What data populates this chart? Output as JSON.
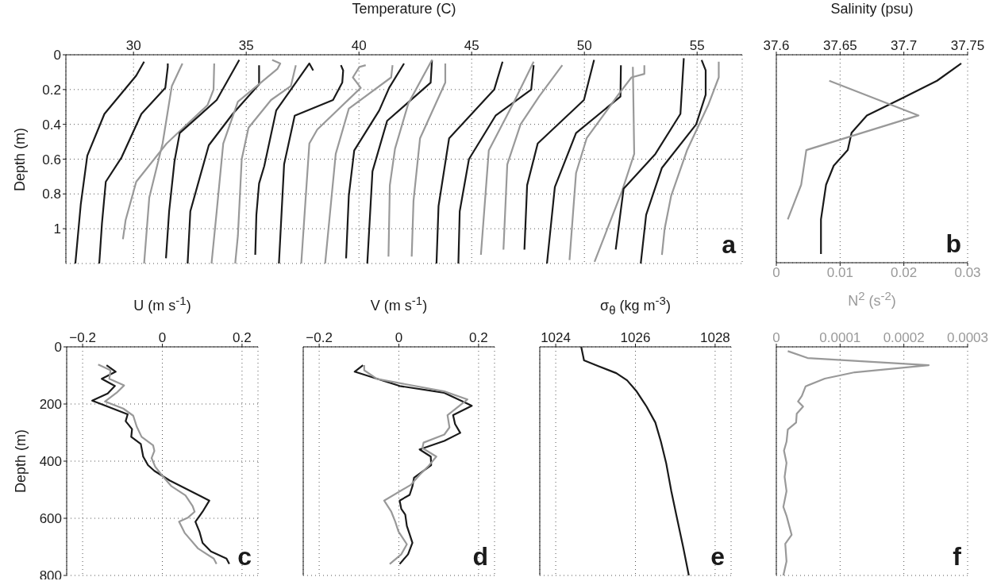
{
  "chart_data": [
    {
      "type": "line",
      "xlabel": "Temperature (C)",
      "ylabel": "Depth (m)",
      "xlim": [
        27,
        57
      ],
      "xticks": [
        30,
        35,
        40,
        45,
        50,
        55
      ],
      "ylim": [
        1.2,
        0
      ],
      "yticks": [
        0,
        0.2,
        0.4,
        0.6,
        0.8,
        1
      ],
      "grid": true,
      "annotations": [
        "a"
      ],
      "series": [
        {
          "color": "#1a1a1a",
          "x": [
            30.47,
            30.12,
            28.71,
            27.95,
            27.66,
            27.42
          ],
          "values": [
            0.04,
            0.12,
            0.34,
            0.58,
            0.86,
            1.2
          ]
        },
        {
          "color": "#1a1a1a",
          "x": [
            31.52,
            31.52,
            31.41,
            30.35,
            29.47,
            28.77,
            28.6,
            28.48
          ],
          "values": [
            0.05,
            0.07,
            0.19,
            0.34,
            0.59,
            0.73,
            0.97,
            1.2
          ]
        },
        {
          "color": "#999999",
          "x": [
            32.17,
            31.7,
            31.29,
            30.7,
            30.47
          ],
          "values": [
            0.05,
            0.18,
            0.51,
            0.82,
            1.2
          ]
        },
        {
          "color": "#999999",
          "x": [
            33.58,
            33.55,
            33.28,
            31.47,
            30.12,
            29.65,
            29.53
          ],
          "values": [
            0.05,
            0.2,
            0.29,
            0.51,
            0.73,
            0.95,
            1.06
          ]
        },
        {
          "color": "#1a1a1a",
          "x": [
            34.69,
            33.69,
            32.05,
            31.82,
            31.58,
            31.44
          ],
          "values": [
            0.03,
            0.26,
            0.45,
            0.61,
            0.9,
            1.17
          ]
        },
        {
          "color": "#1a1a1a",
          "x": [
            35.57,
            35.57,
            34.4,
            33.34,
            32.52,
            32.4
          ],
          "values": [
            0.06,
            0.17,
            0.34,
            0.52,
            0.9,
            1.2
          ]
        },
        {
          "color": "#999999",
          "x": [
            36.15,
            36.51,
            36.39,
            34.63,
            33.98,
            33.69,
            33.46
          ],
          "values": [
            0.03,
            0.05,
            0.08,
            0.27,
            0.51,
            0.9,
            1.2
          ]
        },
        {
          "color": "#999999",
          "x": [
            37.2,
            36.98,
            36.1,
            35.1,
            34.8,
            34.63,
            34.51
          ],
          "values": [
            0.06,
            0.18,
            0.26,
            0.42,
            0.6,
            1.04,
            1.2
          ]
        },
        {
          "color": "#1a1a1a",
          "x": [
            37.97,
            37.8,
            36.33,
            35.8,
            35.57,
            35.45,
            35.4
          ],
          "values": [
            0.09,
            0.05,
            0.32,
            0.64,
            0.74,
            0.92,
            1.15
          ]
        },
        {
          "color": "#1a1a1a",
          "x": [
            39.2,
            39.3,
            39.26,
            38.85,
            37.15,
            36.68,
            36.45
          ],
          "values": [
            0.06,
            0.09,
            0.16,
            0.26,
            0.35,
            0.63,
            1.2
          ]
        },
        {
          "color": "#999999",
          "x": [
            40.3,
            40.02,
            39.73,
            40.08,
            38.15,
            37.8,
            37.44
          ],
          "values": [
            0.06,
            0.07,
            0.13,
            0.19,
            0.43,
            0.51,
            1.2
          ]
        },
        {
          "color": "#999999",
          "x": [
            41.49,
            41.43,
            39.55,
            38.97,
            38.5
          ],
          "values": [
            0.06,
            0.13,
            0.31,
            0.57,
            1.2
          ]
        },
        {
          "color": "#1a1a1a",
          "x": [
            42.0,
            41.34,
            40.9,
            39.79,
            39.55,
            39.43
          ],
          "values": [
            0.05,
            0.19,
            0.32,
            0.55,
            0.81,
            1.17
          ]
        },
        {
          "color": "#1a1a1a",
          "x": [
            43.24,
            43.18,
            41.25,
            40.6,
            40.37
          ],
          "values": [
            0.03,
            0.16,
            0.38,
            0.67,
            1.2
          ]
        },
        {
          "color": "#999999",
          "x": [
            43.24,
            42.19,
            41.6,
            41.37,
            41.31
          ],
          "values": [
            0.03,
            0.28,
            0.54,
            0.75,
            1.16
          ]
        },
        {
          "color": "#999999",
          "x": [
            43.83,
            43.83,
            42.71,
            42.42,
            42.34
          ],
          "values": [
            0.05,
            0.16,
            0.48,
            0.84,
            1.16
          ]
        },
        {
          "color": "#1a1a1a",
          "x": [
            46.37,
            46.0,
            44.0,
            43.53,
            43.44
          ],
          "values": [
            0.04,
            0.2,
            0.48,
            0.87,
            1.2
          ]
        },
        {
          "color": "#1a1a1a",
          "x": [
            47.75,
            47.64,
            46.06,
            44.88,
            44.47,
            44.41
          ],
          "values": [
            0.06,
            0.2,
            0.35,
            0.6,
            0.9,
            1.2
          ]
        },
        {
          "color": "#999999",
          "x": [
            47.75,
            46.88,
            45.76,
            45.41
          ],
          "values": [
            0.04,
            0.27,
            0.55,
            1.15
          ]
        },
        {
          "color": "#999999",
          "x": [
            49.02,
            47.99,
            47.17,
            46.58,
            46.41
          ],
          "values": [
            0.06,
            0.24,
            0.4,
            0.63,
            1.12
          ]
        },
        {
          "color": "#1a1a1a",
          "x": [
            50.43,
            49.98,
            47.93,
            47.46,
            47.34
          ],
          "values": [
            0.03,
            0.26,
            0.51,
            0.75,
            1.12
          ]
        },
        {
          "color": "#1a1a1a",
          "x": [
            51.62,
            51.6,
            49.63,
            48.69,
            48.34
          ],
          "values": [
            0.06,
            0.24,
            0.45,
            0.76,
            1.2
          ]
        },
        {
          "color": "#999999",
          "x": [
            52.66,
            52.66,
            52.09,
            51.5,
            50.1,
            49.63,
            49.34
          ],
          "values": [
            0.06,
            0.11,
            0.13,
            0.23,
            0.48,
            0.68,
            1.18
          ]
        },
        {
          "color": "#999999",
          "x": [
            52.15,
            52.21,
            51.68,
            50.45
          ],
          "values": [
            0.07,
            0.57,
            0.78,
            1.19
          ]
        },
        {
          "color": "#1a1a1a",
          "x": [
            54.41,
            54.26,
            53.15,
            51.74,
            51.39
          ],
          "values": [
            0.02,
            0.34,
            0.57,
            0.77,
            1.12
          ]
        },
        {
          "color": "#1a1a1a",
          "x": [
            55.2,
            55.38,
            55.38,
            54.96,
            53.44,
            52.74,
            52.5
          ],
          "values": [
            0.03,
            0.09,
            0.23,
            0.4,
            0.65,
            0.92,
            1.2
          ]
        },
        {
          "color": "#999999",
          "x": [
            55.96,
            55.96,
            55.49,
            54.55,
            53.85,
            53.56,
            53.44
          ],
          "values": [
            0.04,
            0.13,
            0.29,
            0.55,
            0.81,
            1.0,
            1.15
          ]
        }
      ]
    },
    {
      "type": "line",
      "xlabel": "N$^{2}$ (s$^{-2}$)",
      "x2label": "Salinity (psu)",
      "xlim": [
        0,
        0.03
      ],
      "xticks": [
        0,
        0.01,
        0.02,
        0.03
      ],
      "x2lim": [
        37.6,
        37.75
      ],
      "x2ticks": [
        37.6,
        37.65,
        37.7,
        37.75
      ],
      "ylim": [
        1.2,
        0
      ],
      "yticks": [
        0,
        0.2,
        0.4,
        0.6,
        0.8,
        1
      ],
      "tick_labels": "x",
      "grid": true,
      "annotations": [
        "b"
      ],
      "series": [
        {
          "color": "#1a1a1a",
          "axis": "x2",
          "x": [
            37.745,
            37.726,
            37.699,
            37.671,
            37.659,
            37.656,
            37.645,
            37.639,
            37.635,
            37.635
          ],
          "values": [
            0.05,
            0.15,
            0.25,
            0.35,
            0.45,
            0.55,
            0.64,
            0.75,
            0.95,
            1.15
          ]
        },
        {
          "color": "#999999",
          "x": [
            0.0083,
            0.0223,
            0.0047,
            0.0039,
            0.0018
          ],
          "values": [
            0.15,
            0.35,
            0.55,
            0.75,
            0.95
          ]
        }
      ]
    },
    {
      "type": "line",
      "xlabel": "U (m s$^{-1}$)",
      "ylabel": "Depth (m)",
      "xlim": [
        -0.24,
        0.24
      ],
      "xticks": [
        {
          "value": -0.2,
          "label": "−0.2"
        },
        0,
        0.2
      ],
      "ylim": [
        800,
        0
      ],
      "yticks": [
        0,
        200,
        400,
        600,
        800
      ],
      "grid": true,
      "annotations": [
        "c"
      ],
      "series": [
        {
          "color": "#1a1a1a",
          "x": [
            -0.14,
            -0.117,
            -0.152,
            -0.119,
            -0.137,
            -0.176,
            -0.087,
            -0.092,
            -0.076,
            -0.078,
            -0.054,
            -0.048,
            -0.036,
            -0.02,
            0.019,
            0.118,
            0.101,
            0.083,
            0.093,
            0.101,
            0.122,
            0.161,
            0.168
          ],
          "values": [
            64,
            87,
            112,
            137,
            163,
            188,
            236,
            260,
            288,
            315,
            340,
            384,
            414,
            434,
            468,
            538,
            577,
            612,
            646,
            686,
            716,
            741,
            760
          ]
        },
        {
          "color": "#999999",
          "x": [
            -0.161,
            -0.13,
            -0.133,
            -0.096,
            -0.115,
            -0.144,
            -0.098,
            -0.073,
            -0.064,
            -0.052,
            -0.023,
            -0.02,
            -0.027,
            -0.018,
            -0.002,
            0.023,
            0.058,
            0.076,
            0.081,
            0.065,
            0.042,
            0.056,
            0.09,
            0.129,
            0.136
          ],
          "values": [
            62,
            82,
            112,
            135,
            161,
            191,
            216,
            241,
            280,
            315,
            345,
            364,
            389,
            419,
            448,
            488,
            520,
            557,
            577,
            597,
            612,
            651,
            706,
            741,
            760
          ]
        }
      ]
    },
    {
      "type": "line",
      "xlabel": "V (m s$^{-1}$)",
      "xlim": [
        -0.24,
        0.24
      ],
      "xticks": [
        {
          "value": -0.2,
          "label": "−0.2"
        },
        0,
        0.2
      ],
      "ylim": [
        800,
        0
      ],
      "yticks": [
        0,
        200,
        400,
        600,
        800
      ],
      "tick_labels": "x",
      "grid": true,
      "annotations": [
        "d"
      ],
      "series": [
        {
          "color": "#1a1a1a",
          "x": [
            -0.09,
            -0.111,
            0.002,
            0.114,
            0.183,
            0.136,
            0.141,
            0.154,
            0.114,
            0.052,
            0.08,
            0.081,
            0.038,
            0.034,
            0.027,
            0.002,
            0.006,
            0.016,
            0.02,
            0.027,
            0.034,
            0.023,
            0.002
          ],
          "values": [
            64,
            87,
            137,
            161,
            206,
            239,
            270,
            301,
            329,
            359,
            384,
            414,
            458,
            488,
            518,
            538,
            567,
            587,
            627,
            656,
            686,
            726,
            760
          ]
        },
        {
          "color": "#999999",
          "x": [
            -0.087,
            -0.087,
            -0.055,
            0.114,
            0.172,
            0.122,
            0.127,
            0.114,
            0.062,
            0.059,
            0.094,
            0.073,
            0.052,
            0.03,
            -0.037,
            -0.019,
            -0.009,
            -0.001,
            0.013,
            0.02,
            0.006,
            -0.023
          ],
          "values": [
            64,
            82,
            112,
            156,
            184,
            239,
            282,
            307,
            335,
            354,
            384,
            419,
            448,
            483,
            538,
            577,
            612,
            646,
            676,
            691,
            726,
            760
          ]
        }
      ]
    },
    {
      "type": "line",
      "xlabel": "σ$_{θ}$ (kg m$^{-3}$)",
      "xlim": [
        1023.6,
        1028.4
      ],
      "xticks": [
        1024,
        1026,
        1028
      ],
      "ylim": [
        800,
        0
      ],
      "yticks": [
        0,
        200,
        400,
        600,
        800
      ],
      "tick_labels": "x",
      "grid": true,
      "annotations": [
        "e"
      ],
      "series": [
        {
          "color": "#1a1a1a",
          "x": [
            1024.64,
            1024.71,
            1025.08,
            1025.52,
            1025.79,
            1026.02,
            1026.28,
            1026.5,
            1026.64,
            1026.77,
            1026.9,
            1027.03,
            1027.2,
            1027.34
          ],
          "values": [
            0,
            47,
            68,
            92,
            117,
            154,
            209,
            265,
            332,
            406,
            505,
            591,
            702,
            800
          ]
        }
      ]
    },
    {
      "type": "line",
      "xlim": [
        0,
        0.0003
      ],
      "xticks": [
        0,
        0.0001,
        0.0002,
        0.0003
      ],
      "ylim": [
        800,
        0
      ],
      "yticks": [
        0,
        200,
        400,
        600,
        800
      ],
      "tick_labels": "x",
      "grid": true,
      "annotations": [
        "f"
      ],
      "series": [
        {
          "color": "#999999",
          "x": [
            1.8e-05,
            4.9e-05,
            0.000239,
            0.000123,
            7.6e-05,
            4.6e-05,
            4e-05,
            3.4e-05,
            4.2e-05,
            3.2e-05,
            3.1e-05,
            1.8e-05,
            1.6e-05,
            1.2e-05,
            1.6e-05,
            1.3e-05,
            1.6e-05,
            1.1e-05,
            1.6e-05,
            2.4e-05,
            1.4e-05,
            1.6e-05,
            1.1e-05
          ],
          "values": [
            15,
            39,
            64,
            89,
            111,
            138,
            172,
            191,
            209,
            234,
            265,
            289,
            332,
            363,
            406,
            455,
            505,
            560,
            591,
            658,
            689,
            751,
            800
          ]
        }
      ]
    }
  ]
}
